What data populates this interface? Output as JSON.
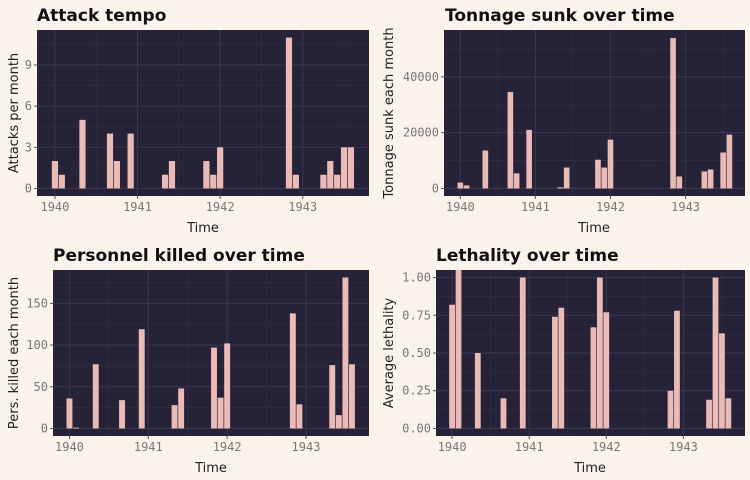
{
  "colors": {
    "background": "#faf3ec",
    "panel": "#262338",
    "grid_major": "#3b3753",
    "grid_minor": "#302c45",
    "bar": "#e9bab6",
    "tick_text": "#777777"
  },
  "chart_data": [
    {
      "type": "bar",
      "title": "Attack tempo",
      "xlabel": "Time",
      "ylabel": "Attacks per month",
      "x_ticks": [
        "1940",
        "1941",
        "1942",
        "1943"
      ],
      "y_ticks": [
        0,
        3,
        6,
        9
      ],
      "y_tick_labels": [
        "0",
        "3",
        "6",
        "9"
      ],
      "xlim": [
        "1939-10-13",
        "1943-10-20"
      ],
      "ylim": [
        -0.55,
        11.55
      ],
      "grid": true,
      "x": [
        "1940-01",
        "1940-02",
        "1940-05",
        "1940-09",
        "1940-10",
        "1940-12",
        "1941-05",
        "1941-06",
        "1941-11",
        "1941-12",
        "1942-01",
        "1942-11",
        "1942-12",
        "1943-04",
        "1943-05",
        "1943-06",
        "1943-07",
        "1943-08"
      ],
      "values": [
        2,
        1,
        5,
        4,
        2,
        4,
        1,
        2,
        2,
        1,
        3,
        11,
        1,
        1,
        2,
        1,
        3,
        3
      ]
    },
    {
      "type": "bar",
      "title": "Tonnage sunk over time",
      "xlabel": "Time",
      "ylabel": "Tonnage sunk each month",
      "x_ticks": [
        "1940",
        "1941",
        "1942",
        "1943"
      ],
      "y_ticks": [
        0,
        20000,
        40000
      ],
      "y_tick_labels": [
        "0",
        "20000",
        "40000"
      ],
      "xlim": [
        "1939-10-13",
        "1943-10-16"
      ],
      "ylim": [
        -2700,
        56800
      ],
      "grid": true,
      "x": [
        "1940-01",
        "1940-02",
        "1940-05",
        "1940-09",
        "1940-10",
        "1940-12",
        "1941-05",
        "1941-06",
        "1941-11",
        "1941-12",
        "1942-01",
        "1942-11",
        "1942-12",
        "1943-04",
        "1943-05",
        "1943-07",
        "1943-08"
      ],
      "values": [
        2100,
        1100,
        13600,
        34600,
        5400,
        21000,
        400,
        7500,
        10300,
        7500,
        17500,
        53900,
        4300,
        6100,
        6800,
        12900,
        19300
      ]
    },
    {
      "type": "bar",
      "title": "Personnel killed over time",
      "xlabel": "Time",
      "ylabel": "Pers. killed each month",
      "x_ticks": [
        "1940",
        "1941",
        "1942",
        "1943"
      ],
      "y_ticks": [
        0,
        50,
        100,
        150
      ],
      "y_tick_labels": [
        "0",
        "50",
        "100",
        "150"
      ],
      "xlim": [
        "1939-10-16",
        "1943-10-19"
      ],
      "ylim": [
        -9,
        190
      ],
      "grid": true,
      "x": [
        "1940-01",
        "1940-02",
        "1940-05",
        "1940-09",
        "1940-12",
        "1941-05",
        "1941-06",
        "1941-11",
        "1941-12",
        "1942-01",
        "1942-11",
        "1942-12",
        "1943-05",
        "1943-06",
        "1943-07",
        "1943-08"
      ],
      "values": [
        36,
        1,
        77,
        34,
        119,
        28,
        48,
        97,
        37,
        102,
        138,
        29,
        76,
        16,
        181,
        77
      ]
    },
    {
      "type": "bar",
      "title": "Lethality over time",
      "xlabel": "Time",
      "ylabel": "Average lethality",
      "x_ticks": [
        "1940",
        "1941",
        "1942",
        "1943"
      ],
      "y_ticks": [
        0,
        0.25,
        0.5,
        0.75,
        1
      ],
      "y_tick_labels": [
        "0.00",
        "0.25",
        "0.50",
        "0.75",
        "1.00"
      ],
      "xlim": [
        "1939-10-16",
        "1943-10-19"
      ],
      "ylim": [
        -0.05,
        1.05
      ],
      "grid": true,
      "x": [
        "1940-01",
        "1940-02",
        "1940-05",
        "1940-09",
        "1940-12",
        "1941-05",
        "1941-06",
        "1941-11",
        "1941-12",
        "1942-01",
        "1942-11",
        "1942-12",
        "1943-05",
        "1943-06",
        "1943-07",
        "1943-08"
      ],
      "values": [
        0.82,
        1.1,
        0.5,
        0.2,
        1.0,
        0.74,
        0.8,
        0.67,
        1.0,
        0.77,
        0.25,
        0.78,
        0.19,
        1.0,
        0.63,
        0.2
      ]
    }
  ]
}
